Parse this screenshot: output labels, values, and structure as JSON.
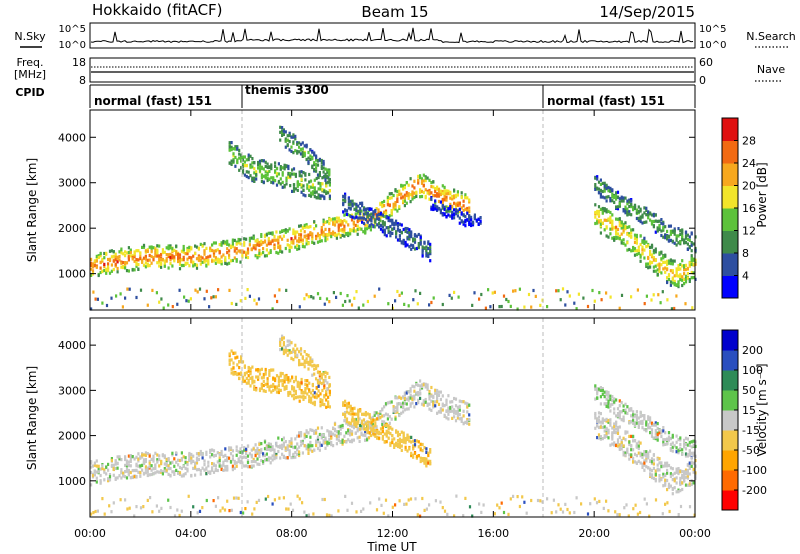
{
  "header": {
    "station": "Hokkaido (fitACF)",
    "beam": "Beam 15",
    "date": "14/Sep/2015"
  },
  "noise_panel": {
    "left_label": "N.Sky",
    "right_label": "N.Search",
    "left_ticks": [
      "10^5",
      "10^0"
    ],
    "right_ticks": [
      "10^5",
      "10^0"
    ]
  },
  "freq_panel": {
    "left_label_1": "Freq.",
    "left_label_2": "[MHz]",
    "right_label": "Nave",
    "left_ticks": [
      "18",
      "8"
    ],
    "right_ticks": [
      "60",
      "0"
    ]
  },
  "cpid_panel": {
    "label": "CPID",
    "modes": [
      {
        "name": "normal (fast) 151",
        "start_hour": 0
      },
      {
        "name": "themis 3300",
        "start_hour": 6
      },
      {
        "name": "normal (fast) 151",
        "start_hour": 18
      }
    ]
  },
  "colors": {
    "power_scale": [
      "#0000ff",
      "#2e4fa0",
      "#3f8a4a",
      "#5cc23a",
      "#f2e52a",
      "#f7a81e",
      "#f26a12",
      "#e01010"
    ],
    "velocity_scale": [
      "#ff0000",
      "#ff6a00",
      "#ffa500",
      "#f2c84b",
      "#c8c8c8",
      "#5ec44a",
      "#2e8b57",
      "#2a4fbf",
      "#0000cc"
    ]
  },
  "chart_data": [
    {
      "type": "heatmap",
      "name": "power",
      "ylabel": "Slant Range [km]",
      "yticks": [
        1000,
        2000,
        3000,
        4000
      ],
      "ylim": [
        200,
        4600
      ],
      "xlim": [
        0,
        24
      ],
      "colorbar": {
        "label": "Power [dB]",
        "ticks": [
          "4",
          "8",
          "12",
          "16",
          "20",
          "24",
          "28"
        ],
        "range": [
          0,
          32
        ]
      },
      "bands": [
        {
          "x": [
            0,
            2,
            4,
            6,
            8,
            10,
            11,
            12,
            13,
            14,
            15
          ],
          "y": [
            1200,
            1400,
            1400,
            1550,
            1800,
            2100,
            2200,
            2600,
            3000,
            2700,
            2500
          ],
          "spread": 260,
          "level": 26
        },
        {
          "x": [
            5.5,
            6.5,
            7.5,
            8.5,
            9.5
          ],
          "y": [
            3700,
            3300,
            3200,
            3000,
            2900
          ],
          "spread": 260,
          "level": 16
        },
        {
          "x": [
            7.5,
            8,
            8.5,
            9,
            9.5
          ],
          "y": [
            4100,
            3900,
            3700,
            3400,
            3200
          ],
          "spread": 200,
          "level": 14
        },
        {
          "x": [
            10,
            11,
            12,
            13,
            13.5
          ],
          "y": [
            2600,
            2300,
            2000,
            1700,
            1500
          ],
          "spread": 220,
          "level": 9
        },
        {
          "x": [
            13.5,
            14.2,
            15,
            15.5
          ],
          "y": [
            2600,
            2400,
            2200,
            2300
          ],
          "spread": 160,
          "level": 6
        },
        {
          "x": [
            20,
            20.8,
            21.6,
            22.4,
            23.2,
            24
          ],
          "y": [
            2300,
            2050,
            1700,
            1300,
            1000,
            1200
          ],
          "spread": 300,
          "level": 22
        },
        {
          "x": [
            20,
            21,
            22,
            23,
            24
          ],
          "y": [
            3000,
            2600,
            2300,
            1900,
            1700
          ],
          "spread": 200,
          "level": 13
        }
      ],
      "ground_band": {
        "y": [
          250,
          700
        ],
        "level": 14
      }
    },
    {
      "type": "heatmap",
      "name": "velocity",
      "ylabel": "Slant Range [km]",
      "yticks": [
        1000,
        2000,
        3000,
        4000
      ],
      "ylim": [
        200,
        4600
      ],
      "xlim": [
        0,
        24
      ],
      "xticks": [
        "00:00",
        "04:00",
        "08:00",
        "12:00",
        "16:00",
        "20:00",
        "00:00"
      ],
      "xtick_hours": [
        0,
        4,
        8,
        12,
        16,
        20,
        24
      ],
      "xlabel": "Time UT",
      "colorbar": {
        "label": "Velocity [m s⁻¹]",
        "ticks": [
          "-200",
          "-100",
          "-50",
          "-15",
          "15",
          "50",
          "100",
          "200"
        ],
        "range": [
          -250,
          250
        ]
      },
      "bands": [
        {
          "x": [
            0,
            2,
            4,
            6,
            8,
            10,
            11,
            12,
            13,
            14,
            15
          ],
          "y": [
            1200,
            1400,
            1400,
            1550,
            1800,
            2100,
            2200,
            2600,
            3000,
            2700,
            2500
          ],
          "spread": 260,
          "level": 0
        },
        {
          "x": [
            5.5,
            6.5,
            7.5,
            8.5,
            9.5
          ],
          "y": [
            3700,
            3300,
            3200,
            3000,
            2900
          ],
          "spread": 260,
          "level": -40
        },
        {
          "x": [
            7.5,
            8,
            8.5,
            9,
            9.5
          ],
          "y": [
            4100,
            3900,
            3700,
            3400,
            3200
          ],
          "spread": 200,
          "level": -30
        },
        {
          "x": [
            10,
            11,
            12,
            13,
            13.5
          ],
          "y": [
            2600,
            2300,
            2000,
            1700,
            1500
          ],
          "spread": 220,
          "level": -35
        },
        {
          "x": [
            20,
            20.8,
            21.6,
            22.4,
            23.2,
            24
          ],
          "y": [
            2300,
            2050,
            1700,
            1300,
            1000,
            1200
          ],
          "spread": 300,
          "level": 0
        },
        {
          "x": [
            20,
            21,
            22,
            23,
            24
          ],
          "y": [
            3000,
            2600,
            2300,
            1900,
            1700
          ],
          "spread": 200,
          "level": 5
        }
      ],
      "ground_band": {
        "y": [
          250,
          700
        ],
        "level": -20
      }
    }
  ]
}
